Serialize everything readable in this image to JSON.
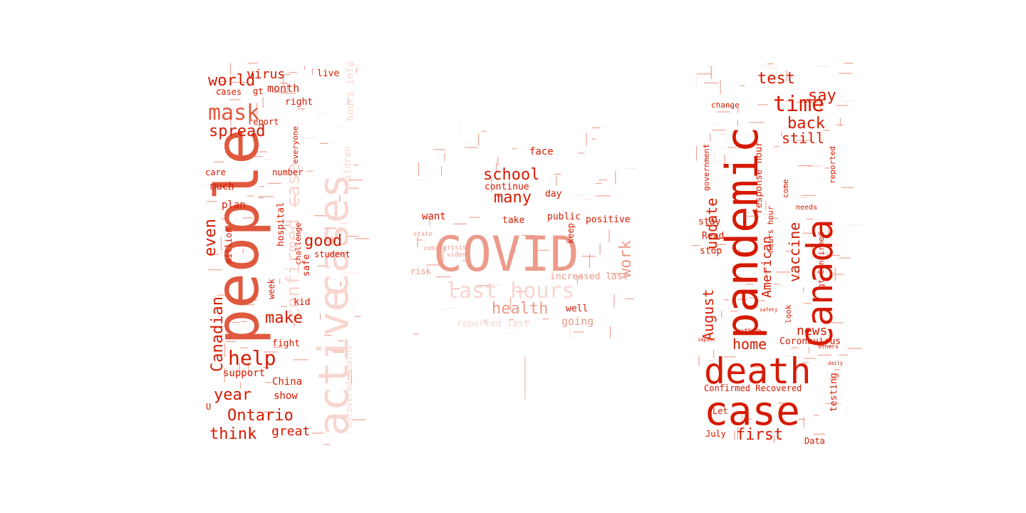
{
  "colors": {
    "background": "#ffffff",
    "strong": "#d61a00",
    "medium": "#e0593f",
    "soft": "#ec9a8a",
    "faint": "#f7d6cf"
  },
  "panels": {
    "left": {
      "words": [
        {
          "text": "people",
          "tone": "medium"
        },
        {
          "text": "active",
          "tone": "faint"
        },
        {
          "text": "cases",
          "tone": "faint"
        },
        {
          "text": "confirmed case",
          "tone": "faint"
        },
        {
          "text": "world",
          "tone": "strong"
        },
        {
          "text": "virus",
          "tone": "strong"
        },
        {
          "text": "live",
          "tone": "strong"
        },
        {
          "text": "mask",
          "tone": "medium"
        },
        {
          "text": "spread",
          "tone": "strong"
        },
        {
          "text": "month",
          "tone": "strong"
        },
        {
          "text": "cases",
          "tone": "strong"
        },
        {
          "text": "gt",
          "tone": "strong"
        },
        {
          "text": "right",
          "tone": "strong"
        },
        {
          "text": "report",
          "tone": "strong"
        },
        {
          "text": "everyone",
          "tone": "strong"
        },
        {
          "text": "care",
          "tone": "strong"
        },
        {
          "text": "number",
          "tone": "strong"
        },
        {
          "text": "much",
          "tone": "strong"
        },
        {
          "text": "plan",
          "tone": "strong"
        },
        {
          "text": "hospital",
          "tone": "strong"
        },
        {
          "text": "challenge",
          "tone": "strong"
        },
        {
          "text": "even",
          "tone": "strong"
        },
        {
          "text": "million",
          "tone": "strong"
        },
        {
          "text": "good",
          "tone": "strong"
        },
        {
          "text": "student",
          "tone": "strong"
        },
        {
          "text": "safe",
          "tone": "strong"
        },
        {
          "text": "make",
          "tone": "strong"
        },
        {
          "text": "kid",
          "tone": "strong"
        },
        {
          "text": "Canadian",
          "tone": "strong"
        },
        {
          "text": "week",
          "tone": "strong"
        },
        {
          "text": "help",
          "tone": "strong"
        },
        {
          "text": "fight",
          "tone": "strong"
        },
        {
          "text": "support",
          "tone": "strong"
        },
        {
          "text": "year",
          "tone": "strong"
        },
        {
          "text": "China",
          "tone": "strong"
        },
        {
          "text": "show",
          "tone": "strong"
        },
        {
          "text": "Ontario",
          "tone": "strong"
        },
        {
          "text": "think",
          "tone": "strong"
        },
        {
          "text": "great",
          "tone": "strong"
        },
        {
          "text": "U",
          "tone": "strong"
        },
        {
          "text": "hours info",
          "tone": "faint"
        },
        {
          "text": "children",
          "tone": "faint"
        },
        {
          "text": "Recovered Deaths",
          "tone": "faint"
        }
      ]
    },
    "center": {
      "words": [
        {
          "text": "COVID",
          "tone": "soft"
        },
        {
          "text": "last hours",
          "tone": "faint"
        },
        {
          "text": "school",
          "tone": "strong"
        },
        {
          "text": "many",
          "tone": "strong"
        },
        {
          "text": "face",
          "tone": "strong"
        },
        {
          "text": "continue",
          "tone": "strong"
        },
        {
          "text": "day",
          "tone": "strong"
        },
        {
          "text": "want",
          "tone": "strong"
        },
        {
          "text": "take",
          "tone": "strong"
        },
        {
          "text": "public",
          "tone": "strong"
        },
        {
          "text": "positive",
          "tone": "strong"
        },
        {
          "text": "keep",
          "tone": "strong"
        },
        {
          "text": "work",
          "tone": "soft"
        },
        {
          "text": "increased last",
          "tone": "soft"
        },
        {
          "text": "health",
          "tone": "soft"
        },
        {
          "text": "well",
          "tone": "strong"
        },
        {
          "text": "going",
          "tone": "soft"
        },
        {
          "text": "reported last",
          "tone": "faint"
        },
        {
          "text": "risk",
          "tone": "soft"
        },
        {
          "text": "state",
          "tone": "soft"
        },
        {
          "text": "coming",
          "tone": "soft"
        },
        {
          "text": "crisis",
          "tone": "soft"
        },
        {
          "text": "video",
          "tone": "soft"
        }
      ]
    },
    "right": {
      "words": [
        {
          "text": "pandemic",
          "tone": "strong"
        },
        {
          "text": "Canada",
          "tone": "strong"
        },
        {
          "text": "death",
          "tone": "strong"
        },
        {
          "text": "case",
          "tone": "strong"
        },
        {
          "text": "test",
          "tone": "strong"
        },
        {
          "text": "say",
          "tone": "strong"
        },
        {
          "text": "time",
          "tone": "strong"
        },
        {
          "text": "back",
          "tone": "strong"
        },
        {
          "text": "still",
          "tone": "strong"
        },
        {
          "text": "change",
          "tone": "strong"
        },
        {
          "text": "government",
          "tone": "strong"
        },
        {
          "text": "update",
          "tone": "strong"
        },
        {
          "text": "response hour",
          "tone": "strong"
        },
        {
          "text": "come",
          "tone": "strong"
        },
        {
          "text": "stay",
          "tone": "strong"
        },
        {
          "text": "Read",
          "tone": "strong"
        },
        {
          "text": "stop",
          "tone": "strong"
        },
        {
          "text": "American",
          "tone": "strong"
        },
        {
          "text": "vaccine",
          "tone": "strong"
        },
        {
          "text": "hours hour",
          "tone": "strong"
        },
        {
          "text": "needs",
          "tone": "strong"
        },
        {
          "text": "gt Confirmed",
          "tone": "strong"
        },
        {
          "text": "reported",
          "tone": "strong"
        },
        {
          "text": "August",
          "tone": "strong"
        },
        {
          "text": "look",
          "tone": "strong"
        },
        {
          "text": "news",
          "tone": "strong"
        },
        {
          "text": "home",
          "tone": "strong"
        },
        {
          "text": "Coronavirus",
          "tone": "strong"
        },
        {
          "text": "Confirmed Recovered",
          "tone": "strong"
        },
        {
          "text": "testing",
          "tone": "strong"
        },
        {
          "text": "Let",
          "tone": "strong"
        },
        {
          "text": "July",
          "tone": "strong"
        },
        {
          "text": "first",
          "tone": "strong"
        },
        {
          "text": "Data",
          "tone": "strong"
        },
        {
          "text": "article",
          "tone": "strong"
        },
        {
          "text": "impact",
          "tone": "strong"
        },
        {
          "text": "safety",
          "tone": "strong"
        },
        {
          "text": "others",
          "tone": "strong"
        },
        {
          "text": "daily",
          "tone": "strong"
        }
      ]
    }
  }
}
